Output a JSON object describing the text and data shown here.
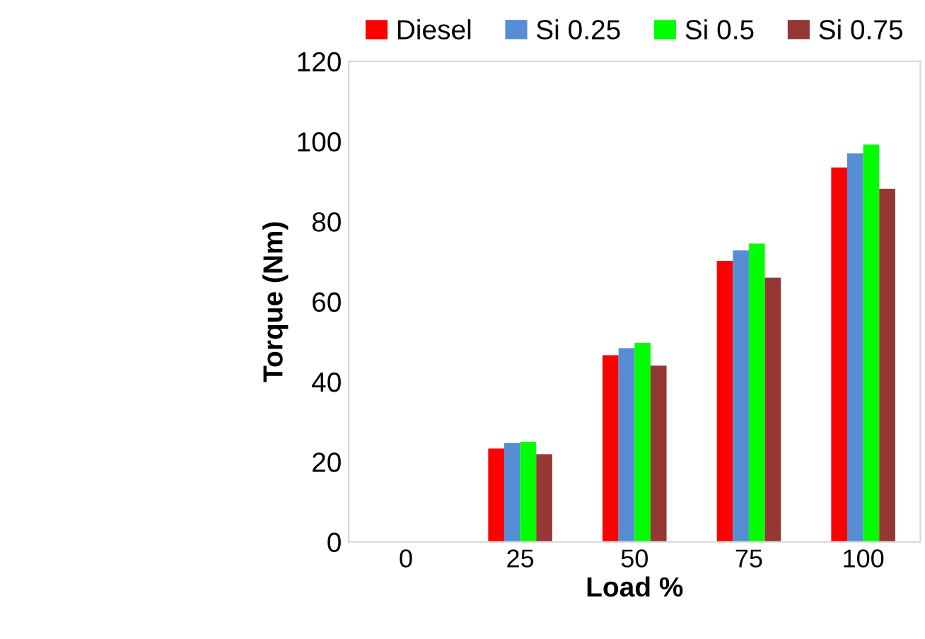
{
  "chart_data": {
    "type": "bar",
    "xlabel": "Load %",
    "ylabel": "Torque (Nm)",
    "categories": [
      "0",
      "25",
      "50",
      "75",
      "100"
    ],
    "series": [
      {
        "name": "Diesel",
        "color": "#ff0000",
        "values": [
          null,
          23.3,
          46.6,
          70.2,
          93.5
        ]
      },
      {
        "name": "Si 0.25",
        "color": "#558ed5",
        "values": [
          null,
          24.7,
          48.4,
          72.8,
          97.0
        ]
      },
      {
        "name": "Si 0.5",
        "color": "#00ff00",
        "values": [
          null,
          25.0,
          49.7,
          74.5,
          99.2
        ]
      },
      {
        "name": "Si 0.75",
        "color": "#953735",
        "values": [
          null,
          21.9,
          44.0,
          66.0,
          88.2
        ]
      }
    ],
    "ylim": [
      0,
      120
    ],
    "yticks": [
      0,
      20,
      40,
      60,
      80,
      100,
      120
    ],
    "grid": false,
    "legend": "top"
  }
}
